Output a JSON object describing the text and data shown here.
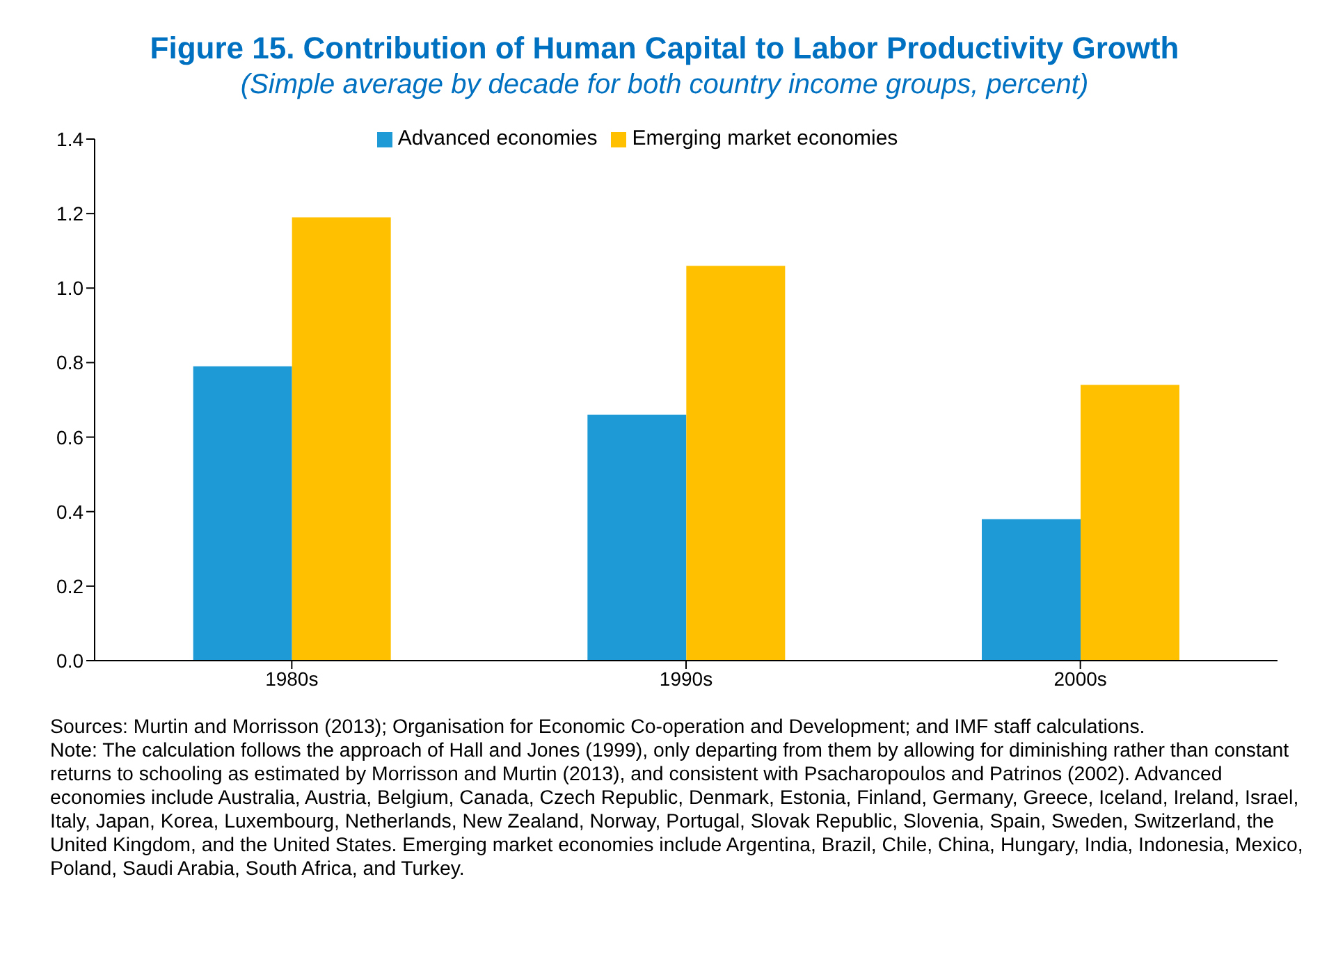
{
  "chart_data": {
    "type": "bar",
    "title": "Figure 15. Contribution of Human Capital to Labor Productivity Growth",
    "subtitle": "(Simple average by decade for both country income groups, percent)",
    "categories": [
      "1980s",
      "1990s",
      "2000s"
    ],
    "series": [
      {
        "name": "Advanced economies",
        "color": "#1e9bd7",
        "values": [
          0.79,
          0.66,
          0.38
        ]
      },
      {
        "name": "Emerging market economies",
        "color": "#ffc000",
        "values": [
          1.19,
          1.06,
          0.74
        ]
      }
    ],
    "ylim": [
      0,
      1.4
    ],
    "yticks": [
      {
        "value": 0,
        "label": "0.0"
      },
      {
        "value": 0.2,
        "label": "0.2"
      },
      {
        "value": 0.4,
        "label": "0.4"
      },
      {
        "value": 0.6,
        "label": "0.6"
      },
      {
        "value": 0.8,
        "label": "0.8"
      },
      {
        "value": 1,
        "label": "1.0"
      },
      {
        "value": 1.2,
        "label": "1.2"
      },
      {
        "value": 1.4,
        "label": "1.4"
      }
    ],
    "grid": false,
    "legend": "top",
    "annotations": [
      "Sources: Murtin and Morrisson (2013); Organisation for Economic Co-operation and Development; and IMF staff calculations.",
      "Note: The calculation follows the approach of Hall and Jones (1999), only departing from them by allowing for diminishing rather than constant returns to schooling as estimated by Morrisson and Murtin (2013), and consistent with Psacharopoulos and Patrinos (2002). Advanced economies include Australia, Austria, Belgium, Canada, Czech Republic, Denmark, Estonia, Finland, Germany, Greece, Iceland, Ireland, Israel, Italy, Japan, Korea, Luxembourg, Netherlands, New Zealand, Norway, Portugal, Slovak Republic, Slovenia, Spain, Sweden, Switzerland, the United Kingdom, and the United States. Emerging market economies include Argentina, Brazil, Chile, China, Hungary, India, Indonesia, Mexico, Poland, Saudi Arabia, South Africa, and Turkey."
    ]
  }
}
